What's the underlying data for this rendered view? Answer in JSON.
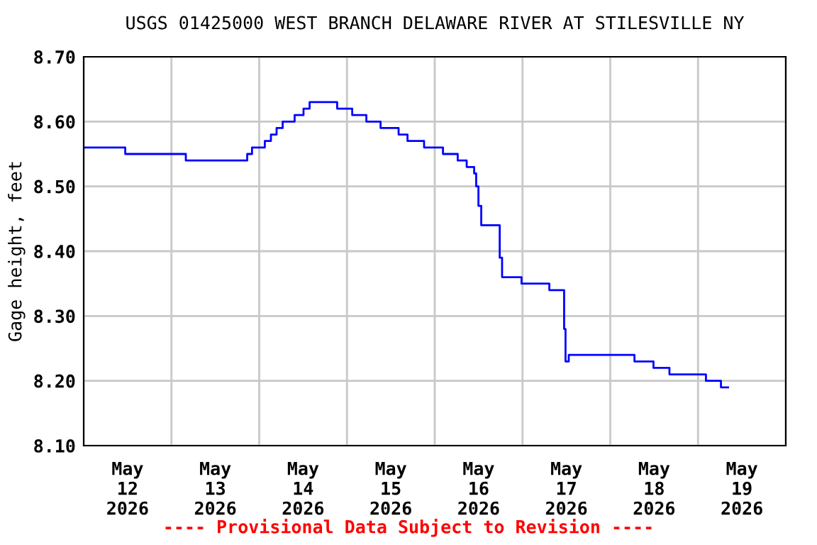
{
  "chart_data": {
    "type": "step",
    "title": "USGS 01425000 WEST BRANCH DELAWARE RIVER AT STILESVILLE NY",
    "ylabel": "Gage height, feet",
    "annotations": [
      "---- Provisional Data Subject to Revision ----"
    ],
    "x": [
      "2026-05-12T00:00",
      "2026-05-12T11:22",
      "2026-05-13T03:56",
      "2026-05-13T20:43",
      "2026-05-13T22:02",
      "2026-05-14T01:32",
      "2026-05-14T03:12",
      "2026-05-14T04:45",
      "2026-05-14T06:25",
      "2026-05-14T09:41",
      "2026-05-14T12:07",
      "2026-05-14T13:47",
      "2026-05-14T21:19",
      "2026-05-15T01:26",
      "2026-05-15T05:18",
      "2026-05-15T09:11",
      "2026-05-15T14:07",
      "2026-05-15T16:33",
      "2026-05-15T21:05",
      "2026-05-16T02:15",
      "2026-05-16T06:17",
      "2026-05-16T08:44",
      "2026-05-16T10:47",
      "2026-05-16T11:20",
      "2026-05-16T11:57",
      "2026-05-16T12:43",
      "2026-05-16T17:16",
      "2026-05-16T17:46",
      "2026-05-16T18:25",
      "2026-05-16T23:44",
      "2026-05-17T07:20",
      "2026-05-17T11:23",
      "2026-05-17T11:46",
      "2026-05-17T12:39",
      "2026-05-18T06:37",
      "2026-05-18T11:49",
      "2026-05-18T16:11",
      "2026-05-19T02:10",
      "2026-05-19T06:16",
      "2026-05-19T08:13"
    ],
    "series": [
      {
        "color": "#0000ff",
        "values": [
          8.56,
          8.55,
          8.54,
          8.55,
          8.56,
          8.57,
          8.58,
          8.59,
          8.6,
          8.61,
          8.62,
          8.63,
          8.62,
          8.61,
          8.6,
          8.59,
          8.58,
          8.57,
          8.56,
          8.55,
          8.54,
          8.53,
          8.52,
          8.5,
          8.47,
          8.44,
          8.44,
          8.39,
          8.36,
          8.35,
          8.34,
          8.28,
          8.23,
          8.24,
          8.23,
          8.22,
          8.21,
          8.2,
          8.19,
          8.19
        ]
      }
    ],
    "xlim": [
      "2026-05-12T00:00",
      "2026-05-20T00:00"
    ],
    "xticks": [
      {
        "value": "2026-05-12T00:00",
        "label": null
      },
      {
        "value": "2026-05-12T12:00",
        "label": "May\n12\n2026"
      },
      {
        "value": "2026-05-13T00:00",
        "label": null
      },
      {
        "value": "2026-05-13T12:00",
        "label": "May\n13\n2026"
      },
      {
        "value": "2026-05-14T00:00",
        "label": null
      },
      {
        "value": "2026-05-14T12:00",
        "label": "May\n14\n2026"
      },
      {
        "value": "2026-05-15T00:00",
        "label": null
      },
      {
        "value": "2026-05-15T12:00",
        "label": "May\n15\n2026"
      },
      {
        "value": "2026-05-16T00:00",
        "label": null
      },
      {
        "value": "2026-05-16T12:00",
        "label": "May\n16\n2026"
      },
      {
        "value": "2026-05-17T00:00",
        "label": null
      },
      {
        "value": "2026-05-17T12:00",
        "label": "May\n17\n2026"
      },
      {
        "value": "2026-05-18T00:00",
        "label": null
      },
      {
        "value": "2026-05-18T12:00",
        "label": "May\n18\n2026"
      },
      {
        "value": "2026-05-19T00:00",
        "label": null
      },
      {
        "value": "2026-05-19T12:00",
        "label": "May\n19\n2026"
      },
      {
        "value": "2026-05-20T00:00",
        "label": null
      }
    ],
    "ylim": [
      8.1,
      8.7
    ],
    "yticks": [
      {
        "value": 8.1,
        "label": "8.10"
      },
      {
        "value": 8.2,
        "label": "8.20"
      },
      {
        "value": 8.3,
        "label": "8.30"
      },
      {
        "value": 8.4,
        "label": "8.40"
      },
      {
        "value": 8.5,
        "label": "8.50"
      },
      {
        "value": 8.6,
        "label": "8.60"
      },
      {
        "value": 8.7,
        "label": "8.70"
      }
    ],
    "grid": true,
    "legend": false,
    "marker": "none",
    "line_style": "solid"
  }
}
